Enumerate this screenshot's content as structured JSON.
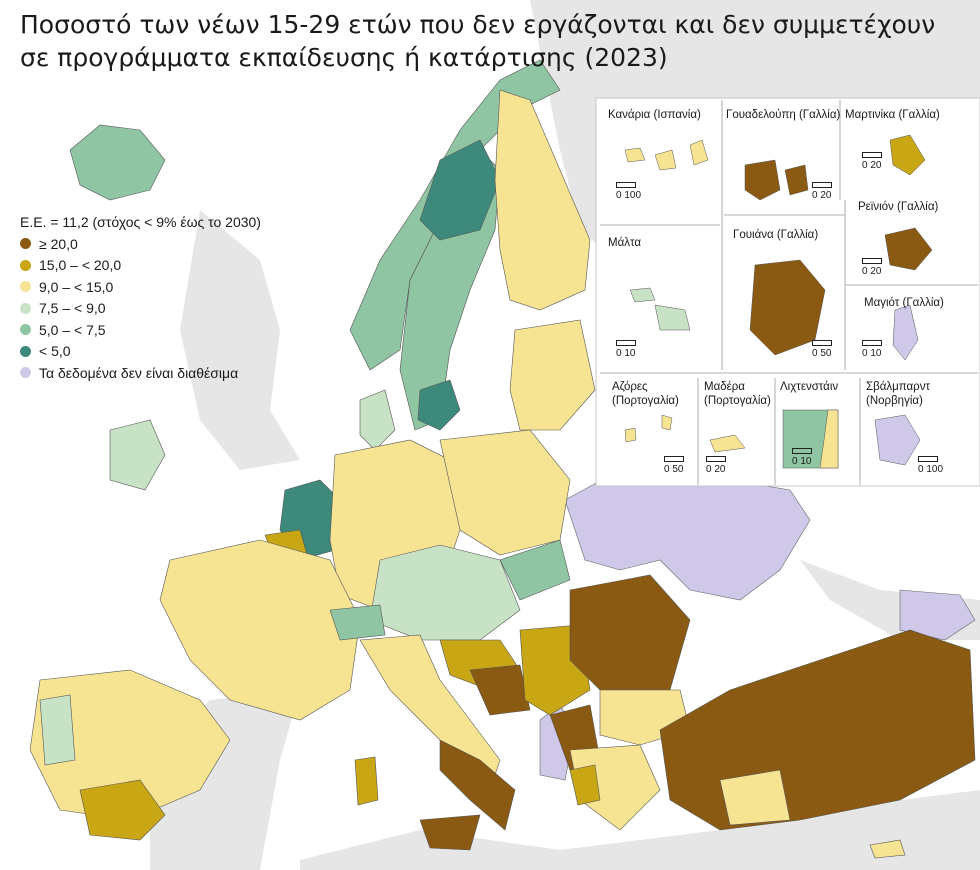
{
  "title": {
    "line1": "Ποσοστό των νέων 15-29 ετών που δεν εργάζονται και δεν συμμετέχουν",
    "line2": "σε προγράμματα εκπαίδευσης ή κατάρτισης (2023)"
  },
  "legend": {
    "header": "Ε.Ε. = 11,2 (στόχος < 9% έως το 2030)",
    "items": [
      {
        "label": "≥ 20,0",
        "color": "#8a5a12"
      },
      {
        "label": "15,0 – < 20,0",
        "color": "#c9a714"
      },
      {
        "label": "9,0 – < 15,0",
        "color": "#f7e493"
      },
      {
        "label": "7,5 – < 9,0",
        "color": "#c8e2c6"
      },
      {
        "label": "5,0 – < 7,5",
        "color": "#8fc5a3"
      },
      {
        "label": "< 5,0",
        "color": "#3d8a7c"
      },
      {
        "label": "Τα δεδομένα δεν είναι διαθέσιμα",
        "color": "#cfc8e8"
      }
    ]
  },
  "insets": {
    "canarias": {
      "label": "Κανάρια (Ισπανία)",
      "scale": "0   100"
    },
    "guadeloupe": {
      "label": "Γουαδελούπη (Γαλλία)",
      "scale": "0  20"
    },
    "martinique": {
      "label": "Μαρτινίκα (Γαλλία)",
      "scale": "0  20"
    },
    "reunion": {
      "label": "Ρεϊνιόν (Γαλλία)",
      "scale": "0  20"
    },
    "malta": {
      "label": "Μάλτα",
      "scale": "0  10"
    },
    "guyane": {
      "label": "Γουιάνα (Γαλλία)",
      "scale": "0  50"
    },
    "mayotte": {
      "label": "Μαγιότ (Γαλλία)",
      "scale": "0  10"
    },
    "azores": {
      "label_line1": "Αζόρες",
      "label_line2": "(Πορτογαλία)",
      "scale": "0  50"
    },
    "madeira": {
      "label_line1": "Μαδέρα",
      "label_line2": "(Πορτογαλία)",
      "scale": "0  20"
    },
    "liechtenstein": {
      "label": "Λιχτενστάιν",
      "scale": "0  10"
    },
    "svalbard": {
      "label_line1": "Σβάλμπαρντ",
      "label_line2": "(Νορβηγία)",
      "scale": "0 100"
    }
  },
  "colors": {
    "sea": "#ffffff",
    "land_out": "#e6e6e6",
    "no_data": "#cfc8e8",
    "border": "#555555"
  }
}
